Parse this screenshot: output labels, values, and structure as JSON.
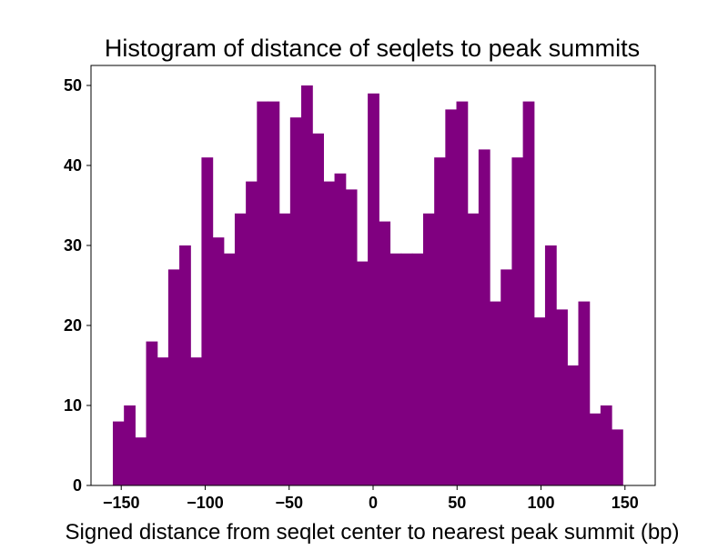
{
  "chart_data": {
    "type": "bar",
    "title": "Histogram of distance of seqlets to peak summits",
    "xlabel": "Signed distance from seqlet center to nearest peak summit (bp)",
    "ylabel": "",
    "xlim": [
      -168,
      168
    ],
    "ylim": [
      0,
      52.5
    ],
    "grid": false,
    "bar_color": "#800080",
    "bin_edges_start": -155,
    "bin_width": 6.6,
    "values": [
      8,
      10,
      6,
      18,
      16,
      27,
      30,
      16,
      41,
      31,
      29,
      34,
      38,
      48,
      48,
      34,
      46,
      50,
      44,
      38,
      39,
      37,
      28,
      49,
      33,
      29,
      29,
      29,
      34,
      41,
      47,
      48,
      34,
      42,
      23,
      27,
      41,
      48,
      21,
      30,
      22,
      15,
      23,
      9,
      10,
      7
    ],
    "xticks": [
      "−150",
      "−100",
      "−50",
      "0",
      "50",
      "100",
      "150"
    ],
    "xtick_values": [
      -150,
      -100,
      -50,
      0,
      50,
      100,
      150
    ],
    "yticks": [
      "0",
      "10",
      "20",
      "30",
      "40",
      "50"
    ],
    "ytick_values": [
      0,
      10,
      20,
      30,
      40,
      50
    ]
  }
}
